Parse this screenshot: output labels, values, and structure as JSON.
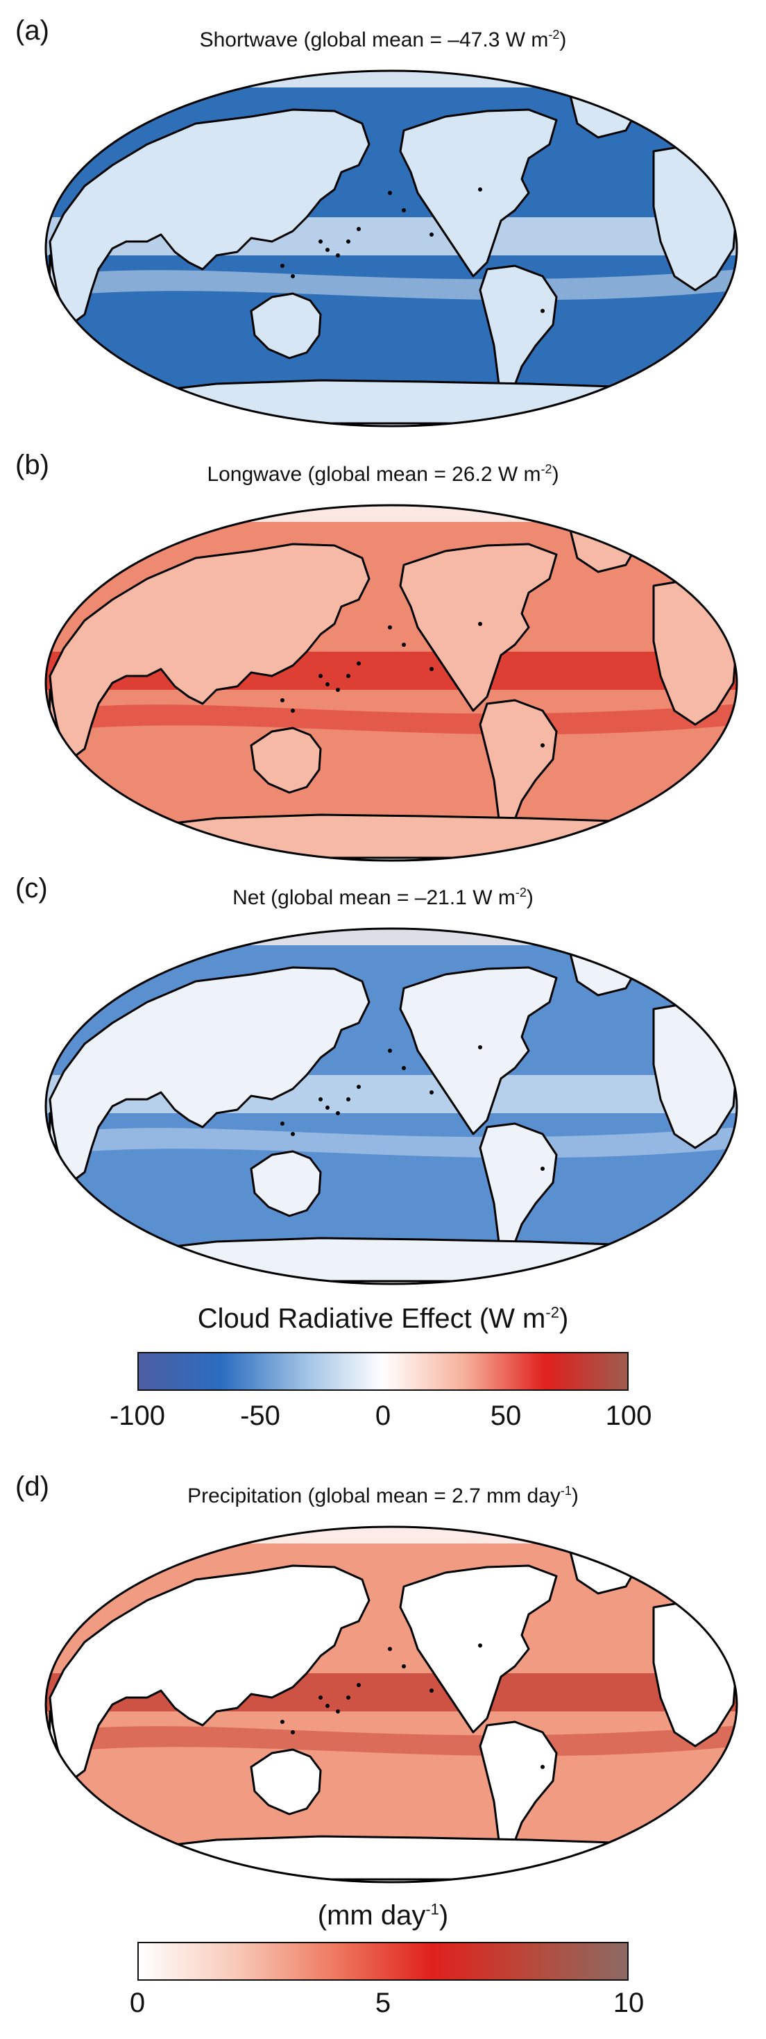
{
  "panels": [
    {
      "id": "a",
      "letter": "(a)",
      "title_prefix": "Shortwave (global mean = –47.3 W m",
      "title_sup": "-2",
      "title_suffix": ")",
      "colormap": "diverging",
      "base_color": "#2f6fb8",
      "land_color": "#d7e6f5",
      "ice_color": "#ffffff",
      "tropics_color": "#cfe0f1"
    },
    {
      "id": "b",
      "letter": "(b)",
      "title_prefix": "Longwave (global mean = 26.2 W m",
      "title_sup": "-2",
      "title_suffix": ")",
      "colormap": "diverging",
      "base_color": "#ef8a72",
      "land_color": "#f6b9a6",
      "ice_color": "#ffffff",
      "tropics_color": "#d9312a"
    },
    {
      "id": "c",
      "letter": "(c)",
      "title_prefix": "Net (global mean = –21.1 W m",
      "title_sup": "-2",
      "title_suffix": ")",
      "colormap": "diverging",
      "base_color": "#5a8fd0",
      "land_color": "#eef3fa",
      "ice_color": "#fdf2ee",
      "tropics_color": "#c7dbf0"
    },
    {
      "id": "d",
      "letter": "(d)",
      "title_prefix": "Precipitation (global mean = 2.7 mm day",
      "title_sup": "-1",
      "title_suffix": ")",
      "colormap": "sequential",
      "base_color": "#f19c82",
      "land_color": "#ffffff",
      "ice_color": "#ffffff",
      "tropics_color": "#c9463a"
    }
  ],
  "colorbar_cre": {
    "title_prefix": "Cloud Radiative Effect (W m",
    "title_sup": "-2",
    "title_suffix": ")",
    "range": [
      -100,
      100
    ],
    "ticks": [
      "-100",
      "-50",
      "0",
      "50",
      "100"
    ],
    "colors": [
      "#4d5ea2",
      "#2a6cbf",
      "#9bbfe3",
      "#ffffff",
      "#f6b09a",
      "#e0201d",
      "#9e5c4e"
    ]
  },
  "colorbar_precip": {
    "title_prefix": "(mm day",
    "title_sup": "-1",
    "title_suffix": ")",
    "range": [
      0,
      10
    ],
    "ticks": [
      "0",
      "5",
      "10"
    ],
    "colors": [
      "#ffffff",
      "#f8c9b8",
      "#ee7a60",
      "#e0201d",
      "#b8493a",
      "#8c6a63"
    ]
  }
}
